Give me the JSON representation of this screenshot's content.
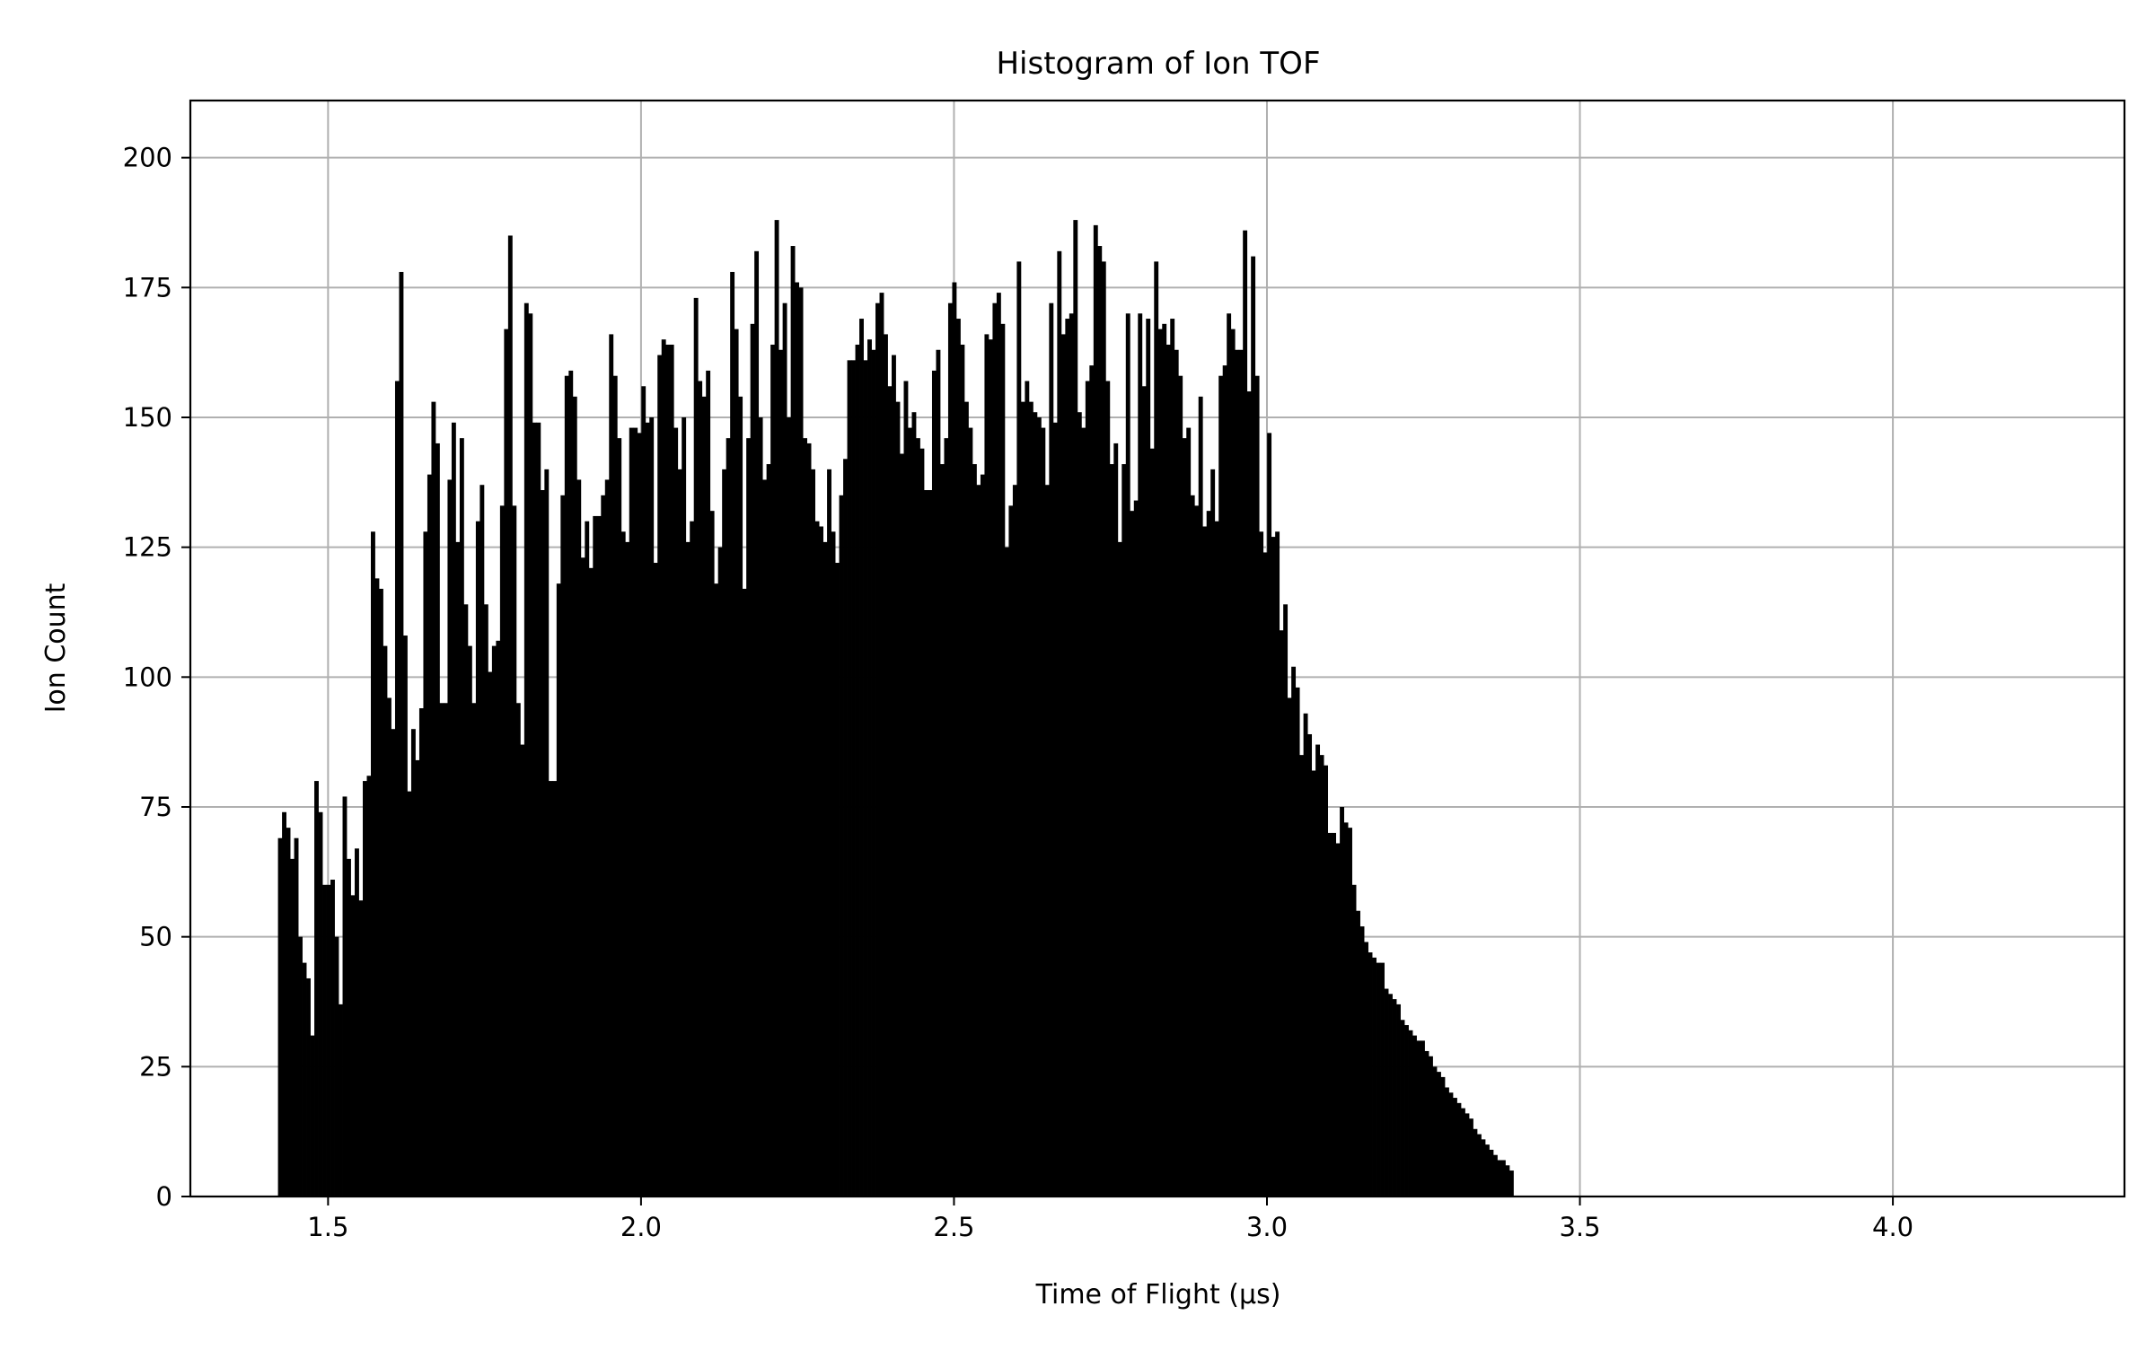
{
  "chart_data": {
    "type": "bar",
    "title": "Histogram of Ion TOF",
    "xlabel": "Time of Flight (µs)",
    "ylabel": "Ion Count",
    "xlim": [
      1.28,
      4.37
    ],
    "ylim": [
      0,
      211
    ],
    "x_ticks": [
      1.5,
      2.0,
      2.5,
      3.0,
      3.5,
      4.0
    ],
    "x_tick_labels": [
      "1.5",
      "2.0",
      "2.5",
      "3.0",
      "3.5",
      "4.0"
    ],
    "y_ticks": [
      0,
      25,
      50,
      75,
      100,
      125,
      150,
      175,
      200
    ],
    "y_tick_labels": [
      "0",
      "25",
      "50",
      "75",
      "100",
      "125",
      "150",
      "175",
      "200"
    ],
    "grid": true,
    "bar_color": "#000000",
    "bin_start": 1.42,
    "bin_width": 0.00645,
    "values": [
      69,
      74,
      71,
      65,
      69,
      50,
      45,
      42,
      31,
      80,
      74,
      60,
      60,
      61,
      50,
      37,
      77,
      65,
      58,
      67,
      57,
      80,
      81,
      128,
      119,
      117,
      106,
      96,
      90,
      157,
      178,
      108,
      78,
      90,
      84,
      94,
      128,
      139,
      153,
      145,
      95,
      95,
      138,
      149,
      126,
      146,
      114,
      106,
      95,
      130,
      137,
      114,
      101,
      106,
      107,
      133,
      167,
      185,
      133,
      95,
      87,
      172,
      170,
      149,
      149,
      136,
      140,
      80,
      80,
      118,
      135,
      158,
      159,
      154,
      138,
      123,
      130,
      121,
      131,
      131,
      135,
      138,
      166,
      158,
      146,
      128,
      126,
      148,
      148,
      147,
      156,
      149,
      150,
      122,
      162,
      165,
      164,
      164,
      148,
      140,
      150,
      126,
      130,
      173,
      157,
      154,
      159,
      132,
      118,
      125,
      140,
      146,
      178,
      167,
      154,
      117,
      146,
      168,
      182,
      150,
      138,
      141,
      164,
      188,
      163,
      172,
      150,
      183,
      176,
      175,
      146,
      145,
      140,
      130,
      129,
      126,
      140,
      128,
      122,
      135,
      142,
      161,
      161,
      164,
      169,
      161,
      165,
      163,
      172,
      174,
      166,
      156,
      162,
      153,
      143,
      157,
      148,
      151,
      146,
      144,
      136,
      136,
      159,
      163,
      141,
      146,
      172,
      176,
      169,
      164,
      153,
      148,
      141,
      137,
      139,
      166,
      165,
      172,
      174,
      168,
      125,
      133,
      137,
      180,
      153,
      157,
      153,
      151,
      150,
      148,
      137,
      172,
      149,
      182,
      166,
      169,
      170,
      188,
      151,
      148,
      157,
      160,
      187,
      183,
      180,
      157,
      141,
      145,
      126,
      141,
      170,
      132,
      134,
      170,
      156,
      169,
      144,
      180,
      167,
      168,
      164,
      169,
      163,
      158,
      146,
      148,
      135,
      133,
      154,
      129,
      132,
      140,
      130,
      158,
      160,
      170,
      167,
      163,
      163,
      186,
      155,
      181,
      158,
      128,
      124,
      147,
      127,
      128,
      109,
      114,
      96,
      102,
      98,
      85,
      93,
      89,
      82,
      87,
      85,
      83,
      70,
      70,
      68,
      75,
      72,
      71,
      60,
      55,
      52,
      49,
      47,
      46,
      45,
      45,
      40,
      39,
      38,
      37,
      34,
      33,
      32,
      31,
      30,
      30,
      28,
      27,
      25,
      24,
      23,
      21,
      20,
      19,
      18,
      17,
      16,
      15,
      13,
      12,
      11,
      10,
      9,
      8,
      7,
      7,
      6,
      5
    ]
  }
}
